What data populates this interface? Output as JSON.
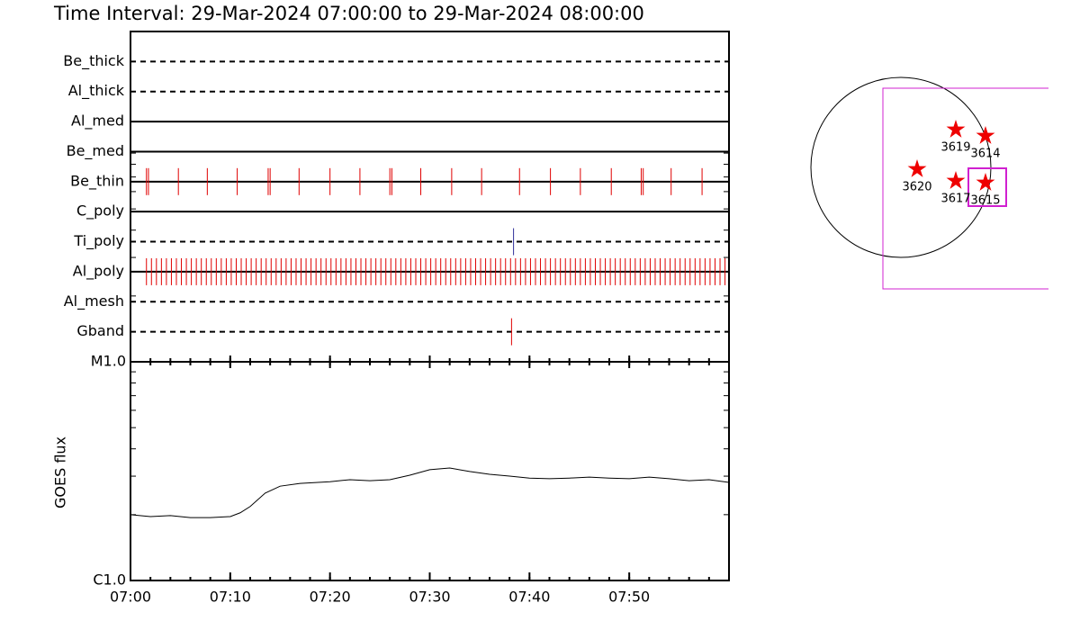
{
  "title": "Time Interval: 29-Mar-2024 07:00:00 to 29-Mar-2024 08:00:00",
  "chart_data": [
    {
      "type": "timeline",
      "categories": [
        "Be_thick",
        "Al_thick",
        "Al_med",
        "Be_med",
        "Be_thin",
        "C_poly",
        "Ti_poly",
        "Al_poly",
        "Al_mesh",
        "Gband"
      ],
      "line_styles": [
        "dashed",
        "dashed",
        "solid",
        "solid",
        "solid",
        "solid",
        "dashed",
        "solid",
        "dashed",
        "dashed"
      ],
      "event_colors": [
        "#e00000",
        "#e00000",
        "#e00000",
        "#e00000",
        "#e00000",
        "#e00000",
        "#30309a",
        "#e00000",
        "#e00000",
        "#e00000"
      ],
      "events": [
        [],
        [],
        [],
        [],
        [
          1.6,
          1.8,
          4.8,
          7.7,
          10.7,
          13.8,
          14.0,
          16.9,
          20.0,
          23.0,
          26.0,
          26.2,
          29.1,
          32.2,
          35.2,
          39.0,
          42.1,
          45.1,
          48.2,
          51.2,
          51.4,
          54.2,
          57.3
        ],
        [],
        [
          38.4
        ],
        [
          1.6,
          2.1,
          2.6,
          3.1,
          3.6,
          4.1,
          4.6,
          5.1,
          5.6,
          6.1,
          6.6,
          7.1,
          7.6,
          8.1,
          8.6,
          9.1,
          9.6,
          10.1,
          10.6,
          11.1,
          11.6,
          12.1,
          12.6,
          13.1,
          13.6,
          14.1,
          14.6,
          15.1,
          15.6,
          16.1,
          16.6,
          17.1,
          17.6,
          18.1,
          18.6,
          19.1,
          19.6,
          20.1,
          20.6,
          21.1,
          21.6,
          22.1,
          22.6,
          23.1,
          23.6,
          24.1,
          24.6,
          25.1,
          25.6,
          26.1,
          26.6,
          27.1,
          27.6,
          28.1,
          28.6,
          29.1,
          29.6,
          30.1,
          30.6,
          31.1,
          31.6,
          32.1,
          32.6,
          33.1,
          33.6,
          34.1,
          34.6,
          35.1,
          35.6,
          36.1,
          36.6,
          37.1,
          37.6,
          38.1,
          38.6,
          39.1,
          39.6,
          40.1,
          40.6,
          41.1,
          41.6,
          42.1,
          42.6,
          43.1,
          43.6,
          44.1,
          44.6,
          45.1,
          45.6,
          46.1,
          46.6,
          47.1,
          47.6,
          48.1,
          48.6,
          49.1,
          49.6,
          50.1,
          50.6,
          51.1,
          51.6,
          52.1,
          52.6,
          53.1,
          53.6,
          54.1,
          54.6,
          55.1,
          55.6,
          56.1,
          56.6,
          57.1,
          57.6,
          58.1,
          58.6,
          59.1,
          59.6
        ],
        [],
        [
          38.2
        ]
      ],
      "xlim": [
        0,
        60
      ]
    },
    {
      "type": "line",
      "ylabel": "GOES flux",
      "x": [
        0,
        2,
        4,
        6,
        8,
        10,
        11,
        12,
        13.5,
        15,
        17,
        20,
        22,
        24,
        26,
        28,
        30,
        32,
        34,
        36,
        38,
        40,
        42,
        44,
        46,
        48,
        50,
        52,
        54,
        56,
        58,
        60
      ],
      "values": [
        2e-06,
        1.96e-06,
        1.98e-06,
        1.94e-06,
        1.94e-06,
        1.96e-06,
        2.04e-06,
        2.18e-06,
        2.51e-06,
        2.7e-06,
        2.78e-06,
        2.83e-06,
        2.89e-06,
        2.86e-06,
        2.89e-06,
        3.03e-06,
        3.21e-06,
        3.27e-06,
        3.15e-06,
        3.06e-06,
        3e-06,
        2.94e-06,
        2.92e-06,
        2.94e-06,
        2.97e-06,
        2.94e-06,
        2.92e-06,
        2.97e-06,
        2.92e-06,
        2.86e-06,
        2.89e-06,
        2.81e-06
      ],
      "color": "#000000",
      "xlim": [
        0,
        60
      ],
      "xticks": [
        {
          "value": 0,
          "label": "07:00"
        },
        {
          "value": 10,
          "label": "07:10"
        },
        {
          "value": 20,
          "label": "07:20"
        },
        {
          "value": 30,
          "label": "07:30"
        },
        {
          "value": 40,
          "label": "07:40"
        },
        {
          "value": 50,
          "label": "07:50"
        }
      ],
      "ylim": [
        1e-06,
        1e-05
      ],
      "yticks": [
        {
          "value": 1e-06,
          "label": "C1.0"
        },
        {
          "value": 1e-05,
          "label": "M1.0"
        }
      ],
      "log_scale": true
    }
  ],
  "map": {
    "regions": [
      {
        "label": "3619"
      },
      {
        "label": "3614"
      },
      {
        "label": "3620"
      },
      {
        "label": "3617"
      },
      {
        "label": "3615"
      }
    ]
  }
}
